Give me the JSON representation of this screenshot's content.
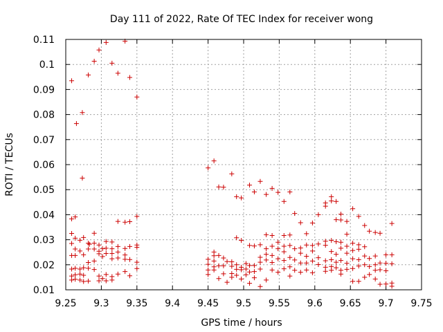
{
  "chart_data": {
    "type": "scatter",
    "title": "Day 111 of 2022, Rate Of TEC Index for receiver wong",
    "xlabel": "GPS time / hours",
    "ylabel": "ROTI / TECUs",
    "xlim": [
      9.25,
      9.75
    ],
    "ylim": [
      0.01,
      0.11
    ],
    "x_ticks": [
      "9.25",
      "9.3",
      "9.35",
      "9.4",
      "9.45",
      "9.5",
      "9.55",
      "9.6",
      "9.65",
      "9.7",
      "9.75"
    ],
    "y_ticks": [
      "0.01",
      "0.02",
      "0.03",
      "0.04",
      "0.05",
      "0.06",
      "0.07",
      "0.08",
      "0.09",
      "0.1",
      "0.11"
    ],
    "grid": true,
    "marker": "+",
    "marker_color": "#cc0000",
    "series": [
      {
        "name": "ROTI",
        "points": [
          [
            9.2583,
            0.0935
          ],
          [
            9.2583,
            0.0383
          ],
          [
            9.2583,
            0.0325
          ],
          [
            9.2583,
            0.0285
          ],
          [
            9.2583,
            0.0237
          ],
          [
            9.2583,
            0.0183
          ],
          [
            9.2583,
            0.0155
          ],
          [
            9.2583,
            0.0139
          ],
          [
            9.2633,
            0.0391
          ],
          [
            9.2633,
            0.0306
          ],
          [
            9.2633,
            0.0263
          ],
          [
            9.2633,
            0.0237
          ],
          [
            9.2633,
            0.0186
          ],
          [
            9.2633,
            0.016
          ],
          [
            9.2633,
            0.0142
          ],
          [
            9.265,
            0.0764
          ],
          [
            9.27,
            0.0298
          ],
          [
            9.27,
            0.0255
          ],
          [
            9.27,
            0.0183
          ],
          [
            9.27,
            0.0163
          ],
          [
            9.27,
            0.0139
          ],
          [
            9.2733,
            0.0808
          ],
          [
            9.2733,
            0.0546
          ],
          [
            9.275,
            0.0309
          ],
          [
            9.275,
            0.024
          ],
          [
            9.275,
            0.0188
          ],
          [
            9.275,
            0.0158
          ],
          [
            9.275,
            0.0133
          ],
          [
            9.2817,
            0.0958
          ],
          [
            9.2817,
            0.0286
          ],
          [
            9.2817,
            0.0263
          ],
          [
            9.2817,
            0.0209
          ],
          [
            9.2817,
            0.0186
          ],
          [
            9.2817,
            0.0135
          ],
          [
            9.2833,
            0.0282
          ],
          [
            9.29,
            0.1013
          ],
          [
            9.29,
            0.0326
          ],
          [
            9.29,
            0.0286
          ],
          [
            9.29,
            0.0263
          ],
          [
            9.29,
            0.0215
          ],
          [
            9.29,
            0.0181
          ],
          [
            9.2967,
            0.1058
          ],
          [
            9.2967,
            0.0279
          ],
          [
            9.2967,
            0.0254
          ],
          [
            9.2967,
            0.0244
          ],
          [
            9.2967,
            0.0155
          ],
          [
            9.2967,
            0.0136
          ],
          [
            9.3017,
            0.0264
          ],
          [
            9.3017,
            0.0233
          ],
          [
            9.3017,
            0.0145
          ],
          [
            9.3067,
            0.1088
          ],
          [
            9.3067,
            0.0293
          ],
          [
            9.3067,
            0.0266
          ],
          [
            9.3067,
            0.0245
          ],
          [
            9.3067,
            0.0161
          ],
          [
            9.3067,
            0.0136
          ],
          [
            9.315,
            0.1005
          ],
          [
            9.315,
            0.0291
          ],
          [
            9.315,
            0.0264
          ],
          [
            9.315,
            0.0245
          ],
          [
            9.315,
            0.0224
          ],
          [
            9.315,
            0.0153
          ],
          [
            9.315,
            0.0139
          ],
          [
            9.3233,
            0.0965
          ],
          [
            9.3233,
            0.0373
          ],
          [
            9.3233,
            0.0273
          ],
          [
            9.3233,
            0.0251
          ],
          [
            9.3233,
            0.0227
          ],
          [
            9.3233,
            0.0163
          ],
          [
            9.3333,
            0.1093
          ],
          [
            9.3333,
            0.037
          ],
          [
            9.3333,
            0.0265
          ],
          [
            9.3333,
            0.0239
          ],
          [
            9.3333,
            0.0222
          ],
          [
            9.3333,
            0.0173
          ],
          [
            9.34,
            0.0948
          ],
          [
            9.34,
            0.0372
          ],
          [
            9.34,
            0.0273
          ],
          [
            9.34,
            0.0221
          ],
          [
            9.34,
            0.0156
          ],
          [
            9.35,
            0.087
          ],
          [
            9.35,
            0.0393
          ],
          [
            9.35,
            0.0279
          ],
          [
            9.35,
            0.027
          ],
          [
            9.35,
            0.021
          ],
          [
            9.35,
            0.0185
          ],
          [
            9.45,
            0.0587
          ],
          [
            9.45,
            0.0222
          ],
          [
            9.45,
            0.0202
          ],
          [
            9.45,
            0.0179
          ],
          [
            9.45,
            0.0161
          ],
          [
            9.4583,
            0.0615
          ],
          [
            9.4583,
            0.0251
          ],
          [
            9.4583,
            0.0236
          ],
          [
            9.4583,
            0.0215
          ],
          [
            9.4583,
            0.0192
          ],
          [
            9.4583,
            0.0179
          ],
          [
            9.465,
            0.0511
          ],
          [
            9.465,
            0.0237
          ],
          [
            9.465,
            0.0196
          ],
          [
            9.465,
            0.0145
          ],
          [
            9.4717,
            0.051
          ],
          [
            9.4717,
            0.0227
          ],
          [
            9.4717,
            0.0196
          ],
          [
            9.4717,
            0.0164
          ],
          [
            9.4767,
            0.0213
          ],
          [
            9.4767,
            0.013
          ],
          [
            9.4833,
            0.0563
          ],
          [
            9.4833,
            0.0212
          ],
          [
            9.4833,
            0.0194
          ],
          [
            9.4833,
            0.0165
          ],
          [
            9.4833,
            0.015
          ],
          [
            9.49,
            0.0472
          ],
          [
            9.49,
            0.0308
          ],
          [
            9.49,
            0.02
          ],
          [
            9.49,
            0.0182
          ],
          [
            9.49,
            0.0158
          ],
          [
            9.4967,
            0.0467
          ],
          [
            9.4967,
            0.0297
          ],
          [
            9.4967,
            0.019
          ],
          [
            9.4967,
            0.018
          ],
          [
            9.4967,
            0.0143
          ],
          [
            9.5033,
            0.0205
          ],
          [
            9.5033,
            0.0183
          ],
          [
            9.5033,
            0.016
          ],
          [
            9.5083,
            0.0518
          ],
          [
            9.5083,
            0.0277
          ],
          [
            9.5083,
            0.0197
          ],
          [
            9.5083,
            0.0171
          ],
          [
            9.5083,
            0.0126
          ],
          [
            9.515,
            0.0491
          ],
          [
            9.515,
            0.0275
          ],
          [
            9.515,
            0.0197
          ],
          [
            9.515,
            0.0173
          ],
          [
            9.515,
            0.0148
          ],
          [
            9.5233,
            0.0533
          ],
          [
            9.5233,
            0.028
          ],
          [
            9.5233,
            0.023
          ],
          [
            9.5233,
            0.021
          ],
          [
            9.5233,
            0.0183
          ],
          [
            9.5233,
            0.0113
          ],
          [
            9.5317,
            0.0481
          ],
          [
            9.5317,
            0.032
          ],
          [
            9.5317,
            0.0264
          ],
          [
            9.5317,
            0.0242
          ],
          [
            9.5317,
            0.0219
          ],
          [
            9.5317,
            0.0139
          ],
          [
            9.54,
            0.0505
          ],
          [
            9.54,
            0.0317
          ],
          [
            9.54,
            0.0274
          ],
          [
            9.54,
            0.0237
          ],
          [
            9.54,
            0.0209
          ],
          [
            9.54,
            0.0179
          ],
          [
            9.5483,
            0.0489
          ],
          [
            9.5483,
            0.029
          ],
          [
            9.5483,
            0.0264
          ],
          [
            9.5483,
            0.0224
          ],
          [
            9.5483,
            0.017
          ],
          [
            9.5567,
            0.0453
          ],
          [
            9.5567,
            0.0317
          ],
          [
            9.5567,
            0.0274
          ],
          [
            9.5567,
            0.0252
          ],
          [
            9.5567,
            0.0217
          ],
          [
            9.5567,
            0.0184
          ],
          [
            9.565,
            0.0491
          ],
          [
            9.565,
            0.0319
          ],
          [
            9.565,
            0.0277
          ],
          [
            9.565,
            0.0229
          ],
          [
            9.565,
            0.0192
          ],
          [
            9.565,
            0.0155
          ],
          [
            9.5717,
            0.0405
          ],
          [
            9.5717,
            0.0264
          ],
          [
            9.5717,
            0.0219
          ],
          [
            9.5717,
            0.0178
          ],
          [
            9.58,
            0.0368
          ],
          [
            9.58,
            0.0267
          ],
          [
            9.58,
            0.0246
          ],
          [
            9.58,
            0.0207
          ],
          [
            9.58,
            0.017
          ],
          [
            9.5883,
            0.0324
          ],
          [
            9.5883,
            0.0279
          ],
          [
            9.5883,
            0.0234
          ],
          [
            9.5883,
            0.0207
          ],
          [
            9.5883,
            0.0179
          ],
          [
            9.5967,
            0.0367
          ],
          [
            9.5967,
            0.0277
          ],
          [
            9.5967,
            0.0255
          ],
          [
            9.5967,
            0.0215
          ],
          [
            9.5967,
            0.0168
          ],
          [
            9.605,
            0.04
          ],
          [
            9.605,
            0.0283
          ],
          [
            9.605,
            0.0228
          ],
          [
            9.605,
            0.0201
          ],
          [
            9.615,
            0.0447
          ],
          [
            9.615,
            0.0434
          ],
          [
            9.615,
            0.0294
          ],
          [
            9.615,
            0.0278
          ],
          [
            9.615,
            0.0216
          ],
          [
            9.615,
            0.019
          ],
          [
            9.615,
            0.0174
          ],
          [
            9.6233,
            0.0472
          ],
          [
            9.6233,
            0.0455
          ],
          [
            9.6233,
            0.0297
          ],
          [
            9.6233,
            0.0253
          ],
          [
            9.6233,
            0.022
          ],
          [
            9.6233,
            0.0193
          ],
          [
            9.6233,
            0.0178
          ],
          [
            9.63,
            0.0453
          ],
          [
            9.63,
            0.038
          ],
          [
            9.63,
            0.0292
          ],
          [
            9.63,
            0.0242
          ],
          [
            9.63,
            0.021
          ],
          [
            9.63,
            0.0188
          ],
          [
            9.6367,
            0.0402
          ],
          [
            9.6367,
            0.0379
          ],
          [
            9.6367,
            0.029
          ],
          [
            9.6367,
            0.0266
          ],
          [
            9.6367,
            0.0217
          ],
          [
            9.6367,
            0.0178
          ],
          [
            9.6367,
            0.0163
          ],
          [
            9.645,
            0.0373
          ],
          [
            9.645,
            0.0322
          ],
          [
            9.645,
            0.0274
          ],
          [
            9.645,
            0.0246
          ],
          [
            9.645,
            0.0206
          ],
          [
            9.645,
            0.0182
          ],
          [
            9.6533,
            0.0424
          ],
          [
            9.6533,
            0.0286
          ],
          [
            9.6533,
            0.0257
          ],
          [
            9.6533,
            0.0224
          ],
          [
            9.6533,
            0.0185
          ],
          [
            9.6533,
            0.0134
          ],
          [
            9.6617,
            0.0393
          ],
          [
            9.6617,
            0.028
          ],
          [
            9.6617,
            0.0262
          ],
          [
            9.6617,
            0.022
          ],
          [
            9.6617,
            0.0195
          ],
          [
            9.6617,
            0.0134
          ],
          [
            9.67,
            0.0357
          ],
          [
            9.67,
            0.0272
          ],
          [
            9.67,
            0.0235
          ],
          [
            9.67,
            0.02
          ],
          [
            9.67,
            0.015
          ],
          [
            9.6767,
            0.0334
          ],
          [
            9.6767,
            0.0225
          ],
          [
            9.6767,
            0.0193
          ],
          [
            9.6767,
            0.0161
          ],
          [
            9.685,
            0.0329
          ],
          [
            9.685,
            0.0235
          ],
          [
            9.685,
            0.02
          ],
          [
            9.685,
            0.0178
          ],
          [
            9.685,
            0.0143
          ],
          [
            9.6917,
            0.0326
          ],
          [
            9.6917,
            0.0207
          ],
          [
            9.6917,
            0.018
          ],
          [
            9.6917,
            0.0122
          ],
          [
            9.7,
            0.024
          ],
          [
            9.7,
            0.0206
          ],
          [
            9.7,
            0.0176
          ],
          [
            9.7,
            0.0123
          ],
          [
            9.7083,
            0.0365
          ],
          [
            9.7083,
            0.024
          ],
          [
            9.7083,
            0.0204
          ],
          [
            9.7083,
            0.0127
          ],
          [
            9.7083,
            0.0114
          ]
        ]
      }
    ]
  }
}
